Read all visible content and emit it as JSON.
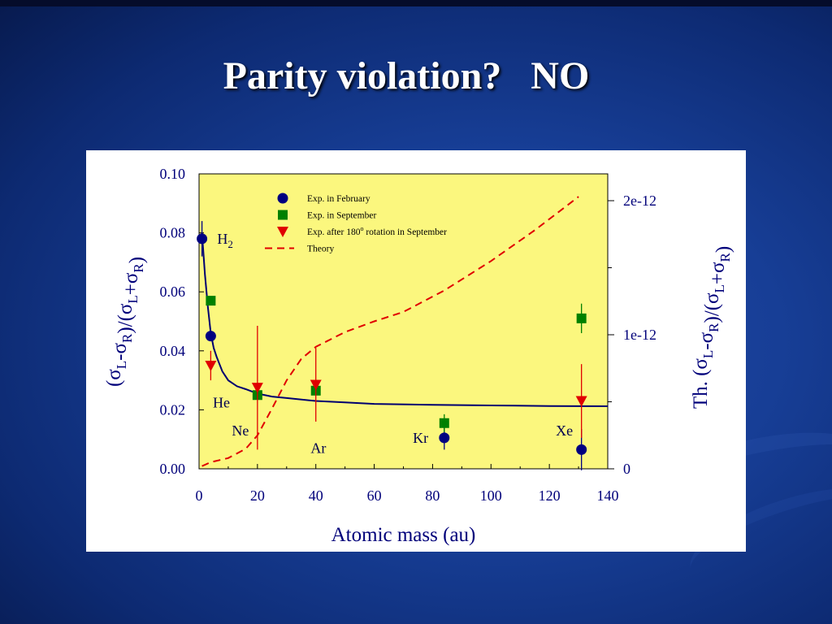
{
  "title": "Parity violation?   NO",
  "chart_data": {
    "type": "scatter",
    "xlabel": "Atomic mass (au)",
    "ylabel_left": "(σL-σR)/(σL+σR)",
    "ylabel_right": "Th. (σL-σR)/(σL+σR)",
    "xlim": [
      0,
      140
    ],
    "ylim_left": [
      0.0,
      0.1
    ],
    "ylim_right": [
      0,
      2.2e-12
    ],
    "x_ticks": [
      "0",
      "20",
      "40",
      "60",
      "80",
      "100",
      "120",
      "140"
    ],
    "y_ticks_left": [
      "0.00",
      "0.02",
      "0.04",
      "0.06",
      "0.08",
      "0.10"
    ],
    "y_ticks_right": [
      {
        "value": 0,
        "label": "0"
      },
      {
        "value": 1e-12,
        "label": "1e-12"
      },
      {
        "value": 2e-12,
        "label": "2e-12"
      }
    ],
    "grid": false,
    "background": "#fbf77e",
    "legend_position": "top-center",
    "series": [
      {
        "name": "Exp. in February",
        "marker": "circle",
        "color": "#000080",
        "axis": "left",
        "points": [
          {
            "x": 1,
            "y": 0.078,
            "err": 0.006
          },
          {
            "x": 4,
            "y": 0.045,
            "err": 0.0
          },
          {
            "x": 84,
            "y": 0.0105,
            "err": 0.004
          },
          {
            "x": 131,
            "y": 0.0065,
            "err": 0.007
          }
        ]
      },
      {
        "name": "Exp. in September",
        "marker": "square",
        "color": "#008000",
        "axis": "left",
        "points": [
          {
            "x": 4,
            "y": 0.057,
            "err": 0.0
          },
          {
            "x": 20,
            "y": 0.025,
            "err": 0.0
          },
          {
            "x": 40,
            "y": 0.0265,
            "err": 0.0
          },
          {
            "x": 84,
            "y": 0.0155,
            "err": 0.003
          },
          {
            "x": 131,
            "y": 0.051,
            "err": 0.005
          }
        ]
      },
      {
        "name": "Exp. after 180o rotation in September",
        "marker": "triangle-down",
        "color": "#e00000",
        "axis": "left",
        "points": [
          {
            "x": 4,
            "y": 0.035,
            "err": 0.005
          },
          {
            "x": 20,
            "y": 0.0275,
            "err": 0.021
          },
          {
            "x": 40,
            "y": 0.0285,
            "err": 0.0125
          },
          {
            "x": 131,
            "y": 0.023,
            "err": 0.0125
          }
        ]
      },
      {
        "name": "Theory",
        "line_style": "dashed",
        "color": "#e00000",
        "axis": "right",
        "x": [
          1,
          4,
          10,
          16,
          20,
          25,
          30,
          35,
          40,
          50,
          60,
          70,
          84,
          100,
          115,
          130
        ],
        "y": [
          2e-14,
          5e-14,
          8e-14,
          1.5e-13,
          2.5e-13,
          4.5e-13,
          6.6e-13,
          8.2e-13,
          9.1e-13,
          1.02e-12,
          1.1e-12,
          1.17e-12,
          1.33e-12,
          1.55e-12,
          1.78e-12,
          2.03e-12
        ]
      },
      {
        "name": "",
        "line_style": "solid",
        "color": "#000070",
        "axis": "left",
        "x": [
          1,
          2,
          3,
          4,
          5,
          6,
          8,
          10,
          13,
          16,
          20,
          25,
          30,
          40,
          50,
          60,
          80,
          100,
          120,
          140
        ],
        "y": [
          0.08,
          0.066,
          0.055,
          0.046,
          0.041,
          0.038,
          0.033,
          0.03,
          0.028,
          0.027,
          0.0255,
          0.0245,
          0.024,
          0.023,
          0.0225,
          0.022,
          0.0217,
          0.0215,
          0.0213,
          0.0212
        ]
      }
    ],
    "annotations": [
      {
        "text": "H",
        "sub": "2",
        "x": 4,
        "y": 0.078
      },
      {
        "text": "He",
        "x": 2.5,
        "y": 0.0225
      },
      {
        "text": "Ne",
        "x": 9,
        "y": 0.013
      },
      {
        "text": "Ar",
        "x": 36,
        "y": 0.007
      },
      {
        "text": "Kr",
        "x": 71,
        "y": 0.0105
      },
      {
        "text": "Xe",
        "x": 120,
        "y": 0.013
      }
    ]
  }
}
